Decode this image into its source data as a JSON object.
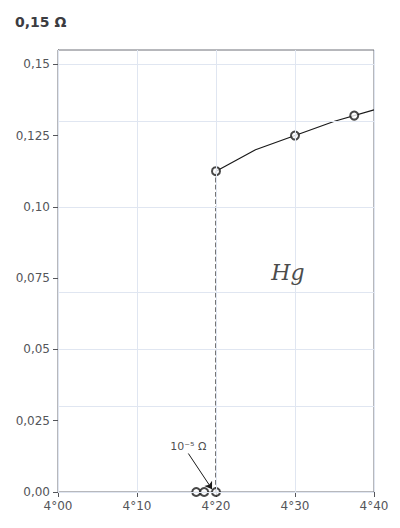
{
  "chart_data": {
    "type": "line",
    "title": "0,15 Ω",
    "xlim": [
      4.0,
      4.4
    ],
    "xticks": [
      {
        "value": 4.0,
        "label": "4°00"
      },
      {
        "value": 4.1,
        "label": "4°10"
      },
      {
        "value": 4.2,
        "label": "4°20"
      },
      {
        "value": 4.3,
        "label": "4°30"
      },
      {
        "value": 4.4,
        "label": "4°40"
      }
    ],
    "ylim": [
      0.0,
      0.155
    ],
    "yticks": [
      {
        "value": 0.0,
        "label": "0,00"
      },
      {
        "value": 0.025,
        "label": "0,025"
      },
      {
        "value": 0.05,
        "label": "0,05"
      },
      {
        "value": 0.075,
        "label": "0,075"
      },
      {
        "value": 0.1,
        "label": "0,10"
      },
      {
        "value": 0.125,
        "label": "0,125"
      },
      {
        "value": 0.15,
        "label": "0,15"
      }
    ],
    "grid": true,
    "series": [
      {
        "type": "line",
        "x": [
          4.2,
          4.2
        ],
        "values": [
          0.0,
          0.1125
        ],
        "color": "#1a1a1a",
        "line_style": "dashed",
        "marker": "none"
      },
      {
        "type": "line",
        "x": [
          4.2,
          4.25,
          4.3,
          4.35,
          4.4
        ],
        "values": [
          0.1125,
          0.12,
          0.125,
          0.13,
          0.134
        ],
        "color": "#1a1a1a",
        "line_style": "solid",
        "marker": "none"
      },
      {
        "type": "scatter",
        "x": [
          4.2,
          4.3,
          4.375
        ],
        "values": [
          0.1125,
          0.125,
          0.132
        ],
        "color": "#1a1a1a",
        "marker": "open_circle"
      },
      {
        "type": "scatter",
        "x": [
          4.175,
          4.185,
          4.2
        ],
        "values": [
          0.0,
          0.0,
          0.0
        ],
        "color": "#1a1a1a",
        "marker": "open_circle"
      }
    ],
    "annotations": [
      {
        "text": "Hg",
        "x": 4.27,
        "y": 0.077
      },
      {
        "text": "10⁻⁵ Ω",
        "x": 4.165,
        "y": 0.0135,
        "arrow_x": 4.195,
        "arrow_y": 0.001
      }
    ]
  }
}
